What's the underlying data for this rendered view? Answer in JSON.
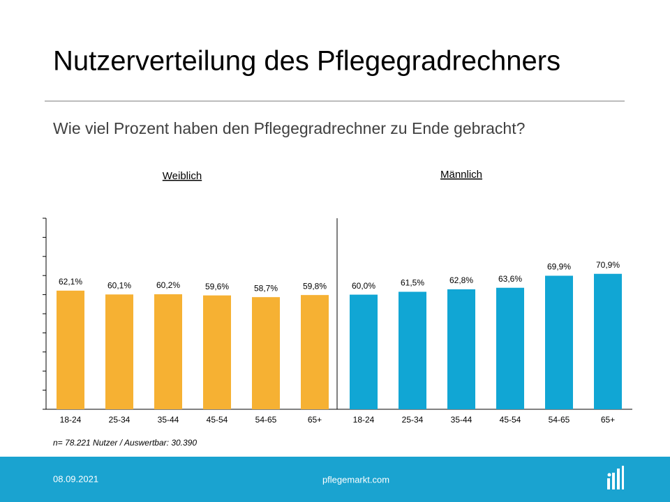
{
  "chart_data": {
    "type": "bar",
    "title": "Nutzerverteilung des Pflegegradrechners",
    "subtitle": "Wie viel Prozent haben den Pflegegradrechner zu Ende gebracht?",
    "groups": [
      {
        "name": "Weiblich",
        "color": "#f6b133",
        "categories": [
          "18-24",
          "25-34",
          "35-44",
          "45-54",
          "54-65",
          "65+"
        ],
        "values": [
          62.1,
          60.1,
          60.2,
          59.6,
          58.7,
          59.8
        ],
        "value_labels": [
          "62,1%",
          "60,1%",
          "60,2%",
          "59,6%",
          "58,7%",
          "59,8%"
        ]
      },
      {
        "name": "Männlich",
        "color": "#11a6d4",
        "categories": [
          "18-24",
          "25-34",
          "35-44",
          "45-54",
          "54-65",
          "65+"
        ],
        "values": [
          60.0,
          61.5,
          62.8,
          63.6,
          69.9,
          70.9
        ],
        "value_labels": [
          "60,0%",
          "61,5%",
          "62,8%",
          "63,6%",
          "69,9%",
          "70,9%"
        ]
      }
    ],
    "ylim": [
      0,
      100
    ],
    "yticks": [
      0,
      10,
      20,
      30,
      40,
      50,
      60,
      70,
      80,
      90,
      100
    ],
    "note": "n= 78.221 Nutzer / Auswertbar: 30.390"
  },
  "footer": {
    "date": "08.09.2021",
    "site": "pflegemarkt.com"
  }
}
